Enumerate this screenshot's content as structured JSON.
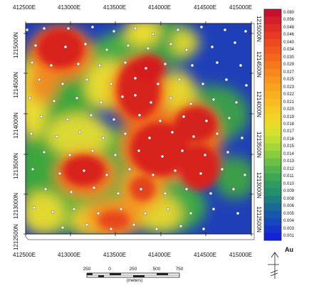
{
  "map": {
    "easting_top": [
      "412500E",
      "413000E",
      "413500E",
      "414000E",
      "414500E",
      "415000E"
    ],
    "easting_bottom": [
      "412500E",
      "413000E",
      "413500E",
      "414000E",
      "414500E",
      "415000E"
    ],
    "northing_left": [
      "1215000N",
      "1214500N",
      "1214000N",
      "1213500N",
      "1213000N",
      "1212500N"
    ],
    "northing_right": [
      "1215000N",
      "1214500N",
      "1214000N",
      "1213500N",
      "1213000N",
      "1212500N"
    ]
  },
  "legend": {
    "title": "Au",
    "values": [
      "0.080",
      "0.056",
      "0.048",
      "0.046",
      "0.040",
      "0.034",
      "0.030",
      "0.029",
      "0.027",
      "0.025",
      "0.023",
      "0.022",
      "0.021",
      "0.020",
      "0.019",
      "0.018",
      "0.017",
      "0.016",
      "0.015",
      "0.014",
      "0.013",
      "0.012",
      "0.011",
      "0.010",
      "0.009",
      "0.008",
      "0.006",
      "0.005",
      "0.004",
      "0.003",
      "0.001"
    ],
    "colors": [
      "#c8102e",
      "#d41f2a",
      "#e02b26",
      "#e83a22",
      "#ee4a20",
      "#f2581e",
      "#f4681e",
      "#f6781e",
      "#f8881e",
      "#f8961e",
      "#f8a21e",
      "#f8b020",
      "#f8bc22",
      "#f6c824",
      "#f2d426",
      "#e8dc2a",
      "#d6e02e",
      "#bede34",
      "#a4d63a",
      "#88cc40",
      "#6cc046",
      "#52b44c",
      "#3ea654",
      "#2e9a62",
      "#24906c",
      "#1e7e80",
      "#1a6a96",
      "#1658aa",
      "#1446bc",
      "#1434cc",
      "#1422d8"
    ]
  },
  "scale_bar": {
    "labels": [
      "250",
      "0",
      "250",
      "500",
      "750"
    ],
    "unit": "(meters)"
  }
}
